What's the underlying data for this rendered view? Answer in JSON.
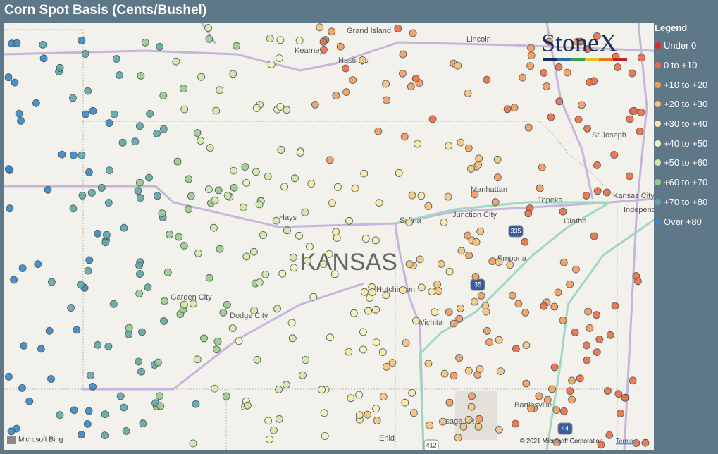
{
  "header": {
    "title": "Corn Spot Basis (Cents/Bushel)"
  },
  "legend": {
    "title": "Legend",
    "items": [
      {
        "label": "Under 0",
        "color": "#e3242b"
      },
      {
        "label": "0 to +10",
        "color": "#ee6a45"
      },
      {
        "label": "+10 to +20",
        "color": "#f39a5e"
      },
      {
        "label": "+20 to +30",
        "color": "#f7c27e"
      },
      {
        "label": "+30 to +40",
        "color": "#fbe6a3"
      },
      {
        "label": "+40 to +50",
        "color": "#eef4bd"
      },
      {
        "label": "+50 to +60",
        "color": "#cfe8a9"
      },
      {
        "label": "+60 to +70",
        "color": "#98cb8d"
      },
      {
        "label": "+70 to +80",
        "color": "#5fa7a6"
      },
      {
        "label": "Over +80",
        "color": "#3a85c5"
      }
    ]
  },
  "map": {
    "labels": [
      "Grand Island",
      "Kearney",
      "Hastings",
      "Lincoln",
      "St Joseph",
      "Manhattan",
      "Topeka",
      "Kansas City",
      "Independence",
      "Junction City",
      "Salina",
      "Hays",
      "KANSAS",
      "Olathe",
      "Emporia",
      "Garden City",
      "Dodge City",
      "Hutchinson",
      "Wichita",
      "Bartlesville",
      "Osage I.R.",
      "Enid"
    ],
    "shields": [
      "335",
      "35",
      "44",
      "412"
    ]
  },
  "logo": "StoneX",
  "attribution": {
    "brand": "Microsoft Bing",
    "copyright": "© 2021 Microsoft Corporation",
    "terms": "Terms"
  }
}
